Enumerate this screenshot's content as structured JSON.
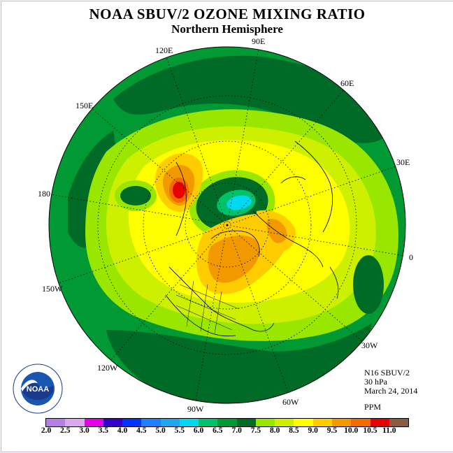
{
  "header": {
    "title": "NOAA SBUV/2 OZONE MIXING RATIO",
    "subtitle": "Northern Hemisphere"
  },
  "longitude_labels": {
    "lon_90E": "90E",
    "lon_60E": "60E",
    "lon_30E": "30E",
    "lon_0": "0",
    "lon_120E": "120E",
    "lon_150E": "150E",
    "lon_180": "180",
    "lon_150W": "150W",
    "lon_120W": "120W",
    "lon_90W": "90W",
    "lon_60W": "60W",
    "lon_30W": "30W"
  },
  "info": {
    "satellite": "N16 SBUV/2",
    "pressure": "30 hPa",
    "date": "March 24, 2014",
    "units": "PPM"
  },
  "logo": {
    "text": "NOAA"
  },
  "colorbar": {
    "levels": [
      "2.0",
      "2.5",
      "3.0",
      "3.5",
      "4.0",
      "4.5",
      "5.0",
      "5.5",
      "6.0",
      "6.5",
      "7.0",
      "7.5",
      "8.0",
      "8.5",
      "9.0",
      "9.5",
      "10.0",
      "10.5",
      "11.0"
    ],
    "colors": [
      "#b57fe6",
      "#d9a9f0",
      "#e600e6",
      "#3300cc",
      "#0033ff",
      "#1f7fff",
      "#1fa6f0",
      "#00d9f0",
      "#00c26b",
      "#009933",
      "#006b26",
      "#99e600",
      "#ccf000",
      "#ffff00",
      "#ffcc00",
      "#f29900",
      "#f26b00",
      "#e60000",
      "#8c5a3c"
    ]
  },
  "map_colors": {
    "c65": "#009933",
    "c70": "#006b26",
    "c75": "#99e600",
    "c80": "#ccf000",
    "c85": "#ffff00",
    "c90": "#ffcc00",
    "c95": "#f29900",
    "c100": "#f26b00",
    "c105": "#e60000",
    "c55": "#00d9f0"
  }
}
